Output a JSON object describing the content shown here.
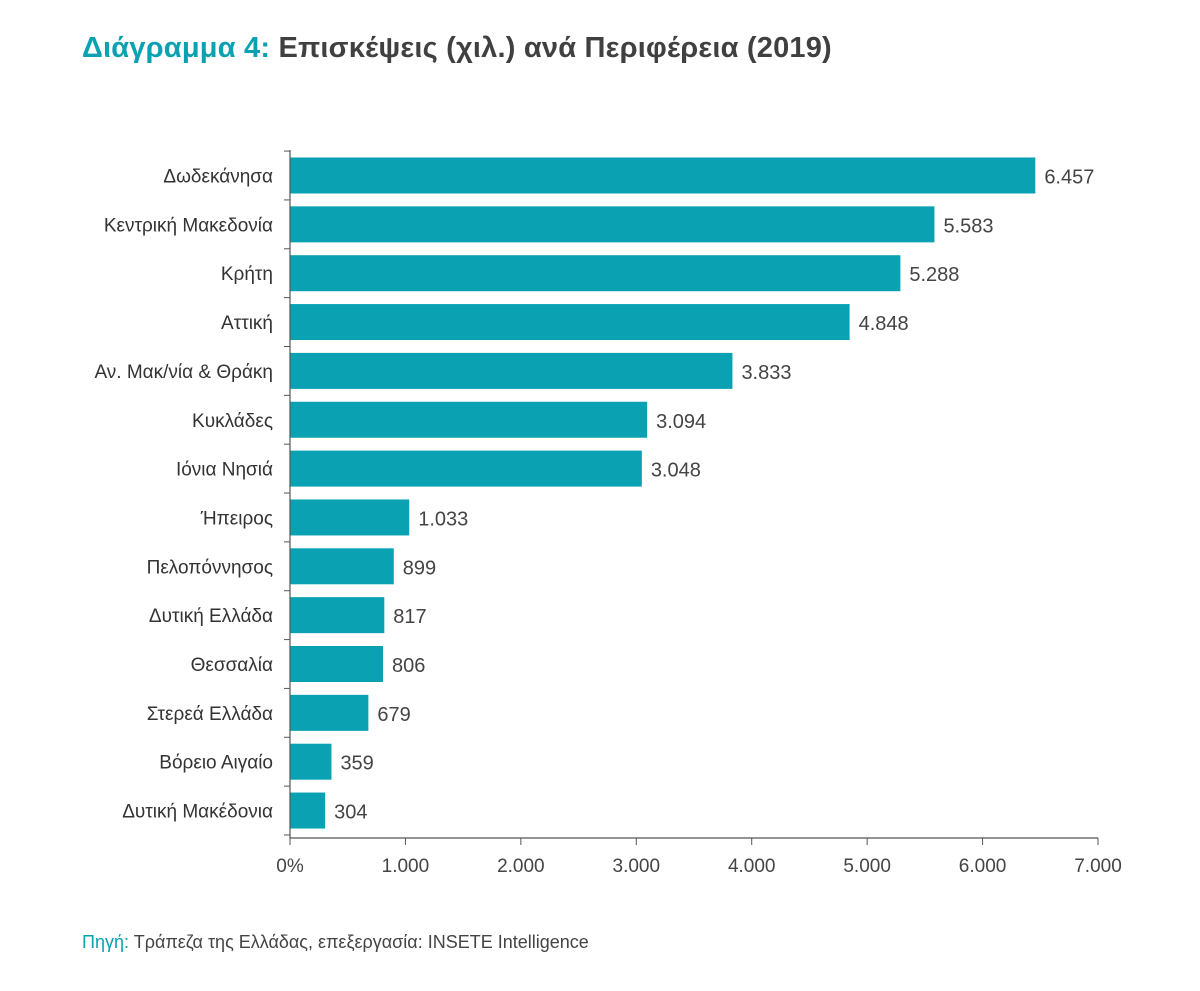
{
  "header": {
    "title_prefix": "Διάγραμμα 4:",
    "title_main": "Επισκέψεις (χιλ.) ανά Περιφέρεια (2019)"
  },
  "footer": {
    "source_prefix": "Πηγή:",
    "source_text": "Τράπεζα της Ελλάδας, επεξεργασία: INSETE Intelligence"
  },
  "colors": {
    "bar": "#0aa2b2",
    "accent": "#0aa2b2",
    "axis": "#555555"
  },
  "chart_data": {
    "type": "bar",
    "orientation": "horizontal",
    "title": "Διάγραμμα 4: Επισκέψεις (χιλ.) ανά Περιφέρεια (2019)",
    "xlabel": "",
    "ylabel": "",
    "xlim": [
      0,
      7000
    ],
    "grid": false,
    "legend": "none",
    "categories": [
      "Δωδεκάνησα",
      "Κεντρική Μακεδονία",
      "Κρήτη",
      "Αττική",
      "Αν. Μακ/νία & Θράκη",
      "Κυκλάδες",
      "Ιόνια Νησιά",
      "Ήπειρος",
      "Πελοπόννησος",
      "Δυτική Ελλάδα",
      "Θεσσαλία",
      "Στερεά Ελλάδα",
      "Βόρειο Αιγαίο",
      "Δυτική Μακέδονια"
    ],
    "values": [
      6457,
      5583,
      5288,
      4848,
      3833,
      3094,
      3048,
      1033,
      899,
      817,
      806,
      679,
      359,
      304
    ],
    "value_labels": [
      "6.457",
      "5.583",
      "5.288",
      "4.848",
      "3.833",
      "3.094",
      "3.048",
      "1.033",
      "899",
      "817",
      "806",
      "679",
      "359",
      "304"
    ],
    "x_ticks": [
      0,
      1000,
      2000,
      3000,
      4000,
      5000,
      6000,
      7000
    ],
    "x_tick_labels": [
      "0%",
      "1.000",
      "2.000",
      "3.000",
      "4.000",
      "5.000",
      "6.000",
      "7.000"
    ]
  }
}
